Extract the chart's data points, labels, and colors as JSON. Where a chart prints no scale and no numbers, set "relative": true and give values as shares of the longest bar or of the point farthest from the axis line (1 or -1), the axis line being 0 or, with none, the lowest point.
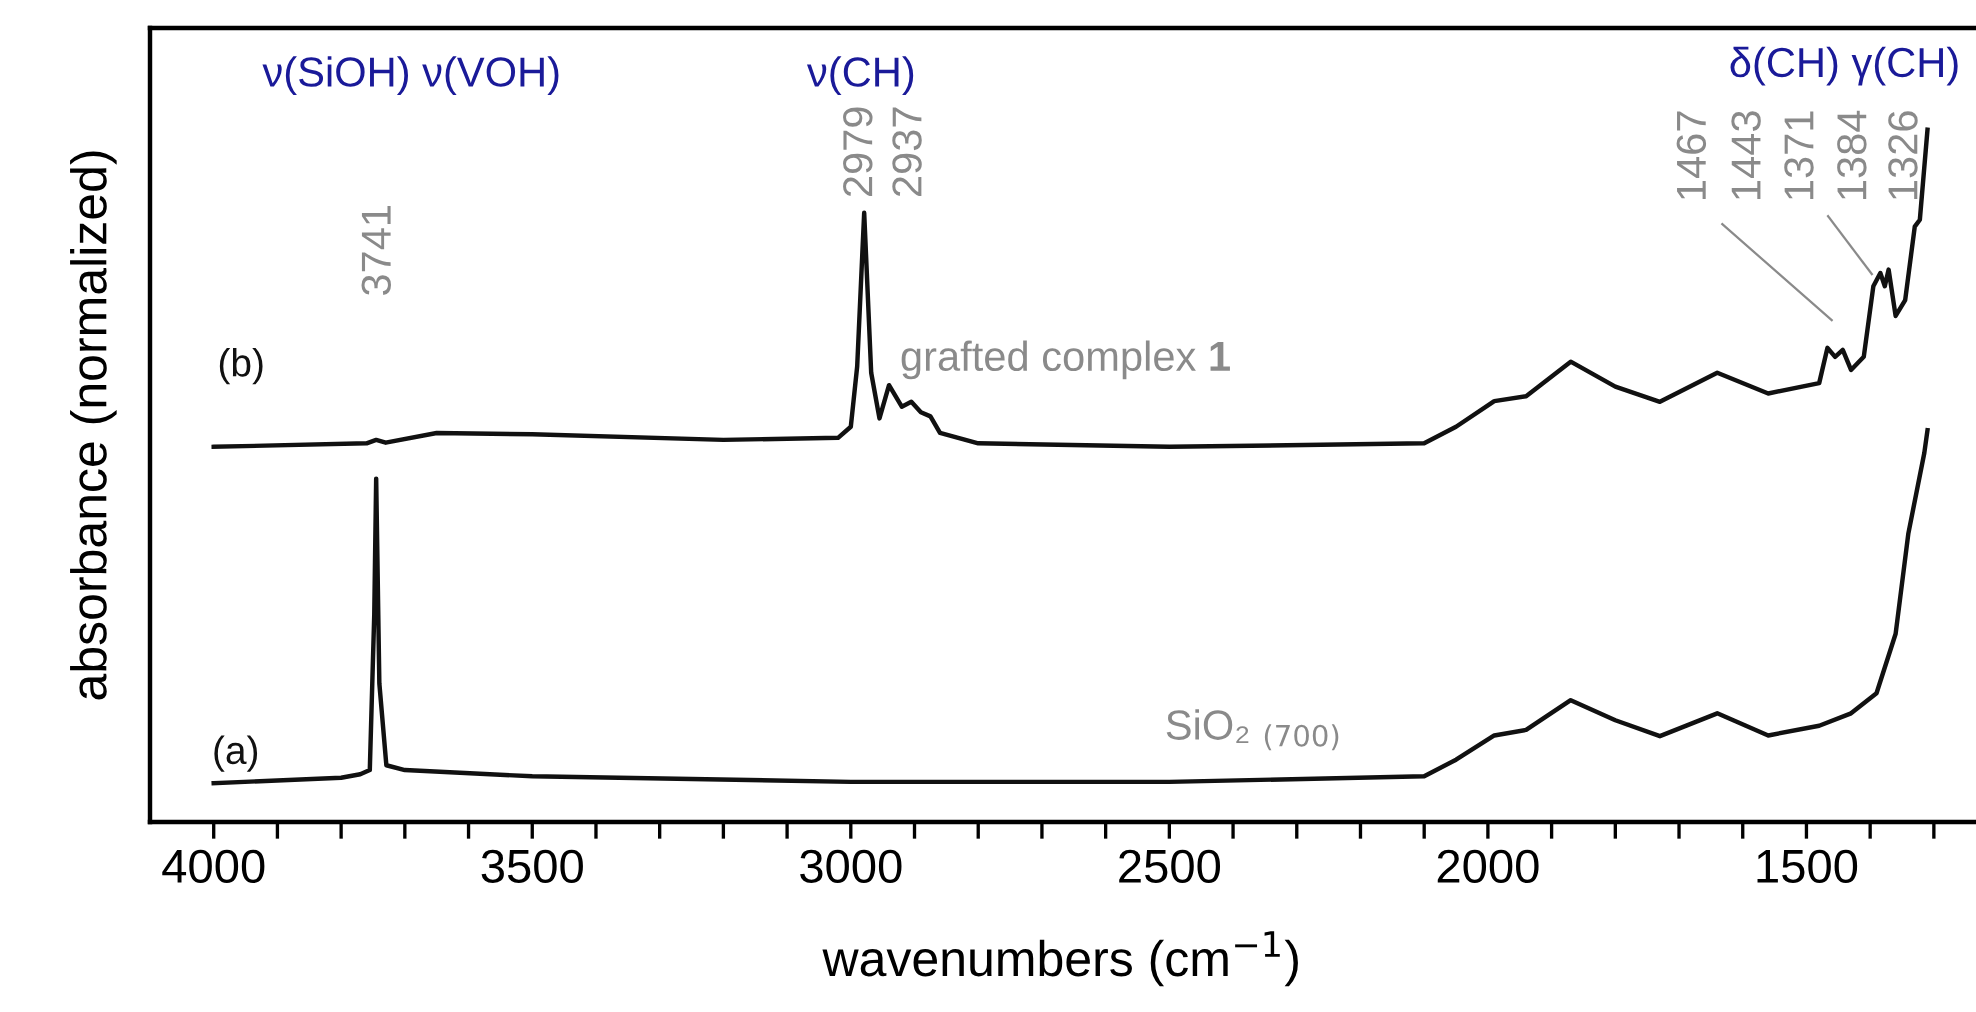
{
  "chart_data": {
    "type": "line",
    "relative": true,
    "xlabel": "wavenumbers (cm$^{−1}$)",
    "ylabel": "absorbance (normalized)",
    "xlim": [
      4100,
      1237
    ],
    "xticks": [
      4000,
      {
        "value": 3900,
        "label": null
      },
      {
        "value": 3800,
        "label": null
      },
      {
        "value": 3700,
        "label": null
      },
      {
        "value": 3600,
        "label": null
      },
      3500,
      {
        "value": 3400,
        "label": null
      },
      {
        "value": 3300,
        "label": null
      },
      {
        "value": 3200,
        "label": null
      },
      {
        "value": 3100,
        "label": null
      },
      3000,
      {
        "value": 2900,
        "label": null
      },
      {
        "value": 2800,
        "label": null
      },
      {
        "value": 2700,
        "label": null
      },
      {
        "value": 2600,
        "label": null
      },
      2500,
      {
        "value": 2400,
        "label": null
      },
      {
        "value": 2300,
        "label": null
      },
      {
        "value": 2200,
        "label": null
      },
      {
        "value": 2100,
        "label": null
      },
      2000,
      {
        "value": 1900,
        "label": null
      },
      {
        "value": 1800,
        "label": null
      },
      {
        "value": 1700,
        "label": null
      },
      {
        "value": 1600,
        "label": null
      },
      1500,
      {
        "value": 1400,
        "label": null
      },
      {
        "value": 1300,
        "label": null
      }
    ],
    "tick_labels": "x",
    "grid": false,
    "legend": false,
    "marker": "none",
    "line_style": "solid",
    "series": [
      {
        "color": "#111111",
        "x": [
          4000,
          3800,
          3770,
          3755,
          3748,
          3745,
          3740,
          3729,
          3700,
          3500,
          3000,
          2500,
          2100,
          2050,
          1990,
          1940,
          1870,
          1800,
          1730,
          1640,
          1560,
          1480,
          1430,
          1390,
          1360,
          1340,
          1315,
          1310
        ],
        "values": [
          0.056,
          0.064,
          0.069,
          0.075,
          0.3,
          0.496,
          0.2,
          0.082,
          0.075,
          0.066,
          0.058,
          0.058,
          0.066,
          0.09,
          0.125,
          0.133,
          0.176,
          0.147,
          0.124,
          0.157,
          0.125,
          0.139,
          0.157,
          0.186,
          0.272,
          0.417,
          0.533,
          0.566
        ]
      },
      {
        "color": "#111111",
        "x": [
          4000,
          3760,
          3745,
          3730,
          3650,
          3500,
          3200,
          3020,
          3000,
          2990,
          2979,
          2968,
          2955,
          2940,
          2920,
          2905,
          2890,
          2875,
          2860,
          2800,
          2500,
          2100,
          2050,
          1990,
          1940,
          1870,
          1800,
          1730,
          1640,
          1560,
          1480,
          1467,
          1455,
          1443,
          1430,
          1410,
          1395,
          1384,
          1377,
          1371,
          1360,
          1345,
          1330,
          1322,
          1310
        ],
        "values": [
          0.542,
          0.547,
          0.552,
          0.548,
          0.562,
          0.56,
          0.552,
          0.555,
          0.571,
          0.658,
          0.88,
          0.649,
          0.583,
          0.631,
          0.6,
          0.607,
          0.592,
          0.586,
          0.562,
          0.547,
          0.542,
          0.547,
          0.571,
          0.608,
          0.615,
          0.665,
          0.629,
          0.607,
          0.649,
          0.619,
          0.634,
          0.685,
          0.672,
          0.682,
          0.653,
          0.672,
          0.774,
          0.793,
          0.774,
          0.798,
          0.731,
          0.754,
          0.86,
          0.87,
          1.0
        ]
      }
    ],
    "annotations": [
      "ν(SiOH) ν(VOH)",
      "ν(CH)",
      "δ(CH) γ(CH)",
      "3741",
      "2979",
      "2937",
      "1467",
      "1443",
      "1371",
      "1384",
      "1326",
      "(b)",
      "grafted complex 1",
      "(a)",
      "SiO₂ $_{(700)}$"
    ]
  }
}
